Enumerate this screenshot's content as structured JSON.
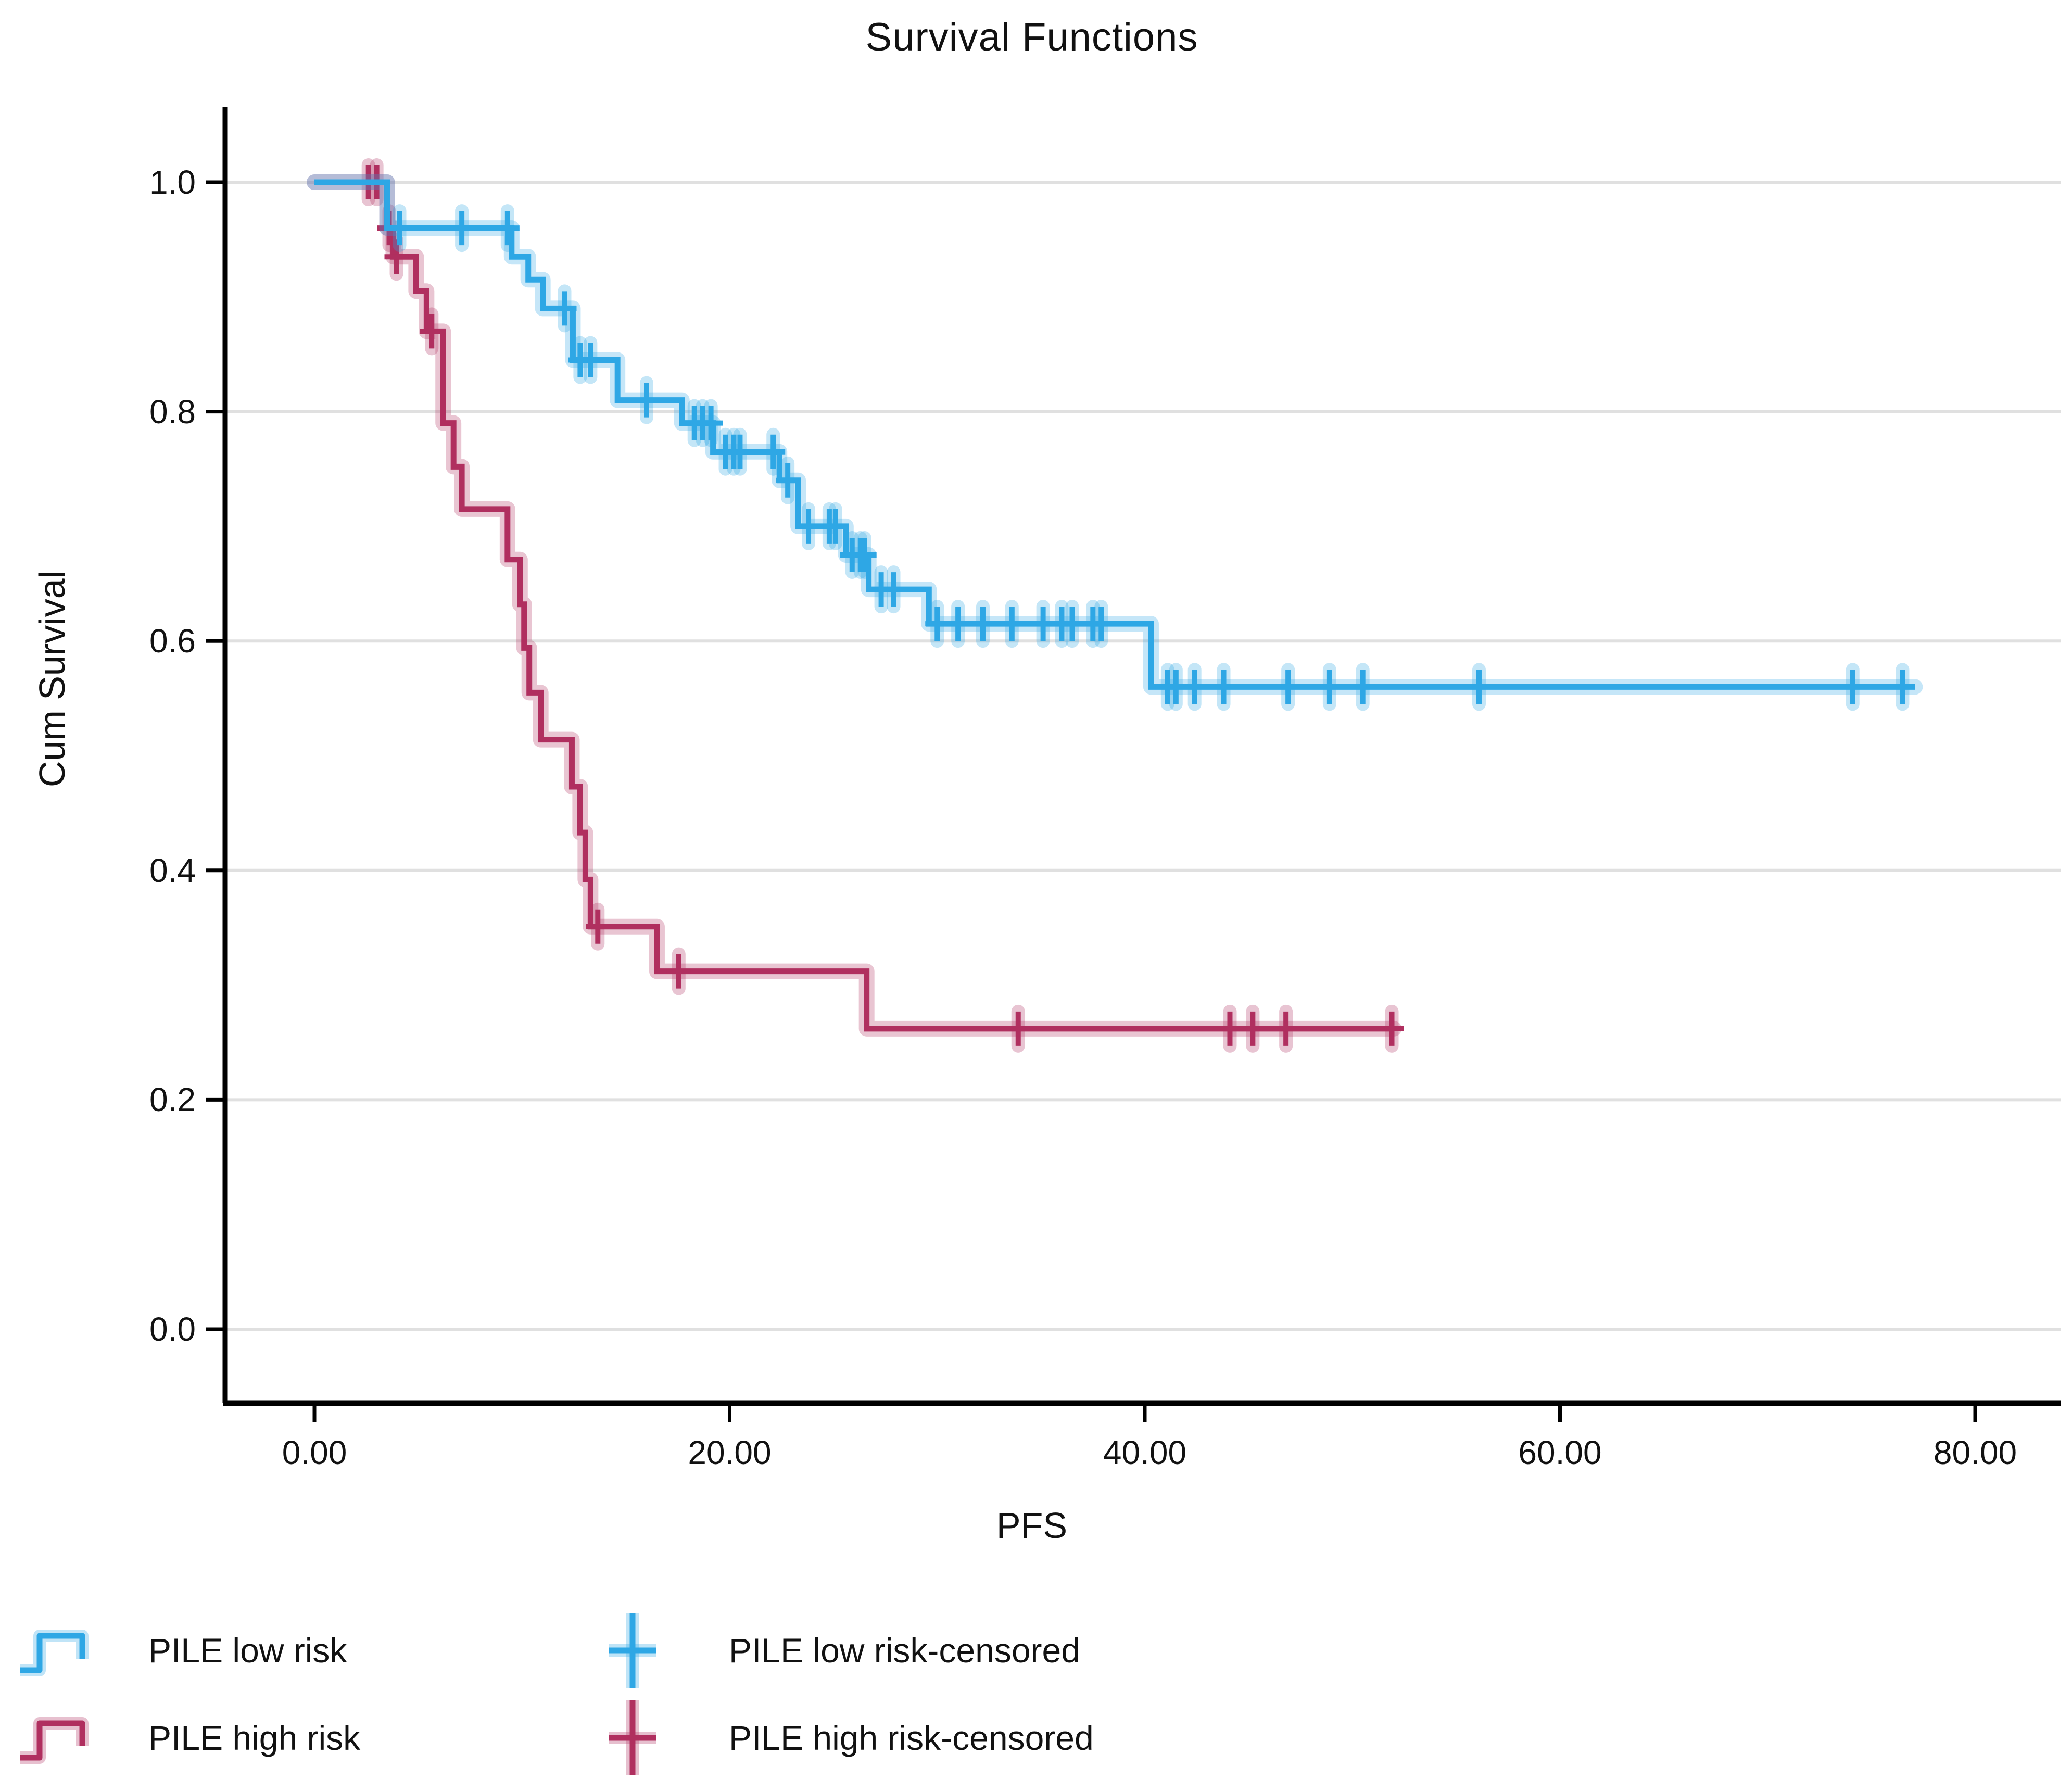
{
  "title": "Survival Functions",
  "axes": {
    "x": {
      "label": "PFS",
      "tick_labels": [
        "0.00",
        "20.00",
        "40.00",
        "60.00",
        "80.00"
      ],
      "tick_values": [
        0,
        20,
        40,
        60,
        80
      ]
    },
    "y": {
      "label": "Cum Survival",
      "tick_labels": [
        "1.0",
        "0.8",
        "0.6",
        "0.4",
        "0.2",
        "0.0"
      ],
      "tick_values": [
        1.0,
        0.8,
        0.6,
        0.4,
        0.2,
        0.0
      ]
    }
  },
  "colors": {
    "low_risk": "#2EA7E5",
    "high_risk": "#B02F5F",
    "gridline": "#E0E0E0",
    "axis": "#000000"
  },
  "chart_data": {
    "type": "line",
    "subtype": "kaplan-meier-step",
    "title": "Survival Functions",
    "xlabel": "PFS",
    "ylabel": "Cum Survival",
    "xlim": [
      -4.3,
      84.2
    ],
    "ylim": [
      0,
      1.05
    ],
    "grid": "horizontal",
    "legend_position": "bottom-left",
    "series": [
      {
        "name": "PILE low risk",
        "color": "#2EA7E5",
        "steps": [
          [
            0,
            1.0
          ],
          [
            3.5,
            0.96
          ],
          [
            9.5,
            0.935
          ],
          [
            10.3,
            0.915
          ],
          [
            11.0,
            0.89
          ],
          [
            12.45,
            0.845
          ],
          [
            14.6,
            0.81
          ],
          [
            17.7,
            0.79
          ],
          [
            19.2,
            0.765
          ],
          [
            22.4,
            0.74
          ],
          [
            23.3,
            0.7
          ],
          [
            25.6,
            0.675
          ],
          [
            26.7,
            0.645
          ],
          [
            29.6,
            0.615
          ],
          [
            40.3,
            0.56
          ]
        ],
        "end_t": 77.1,
        "censored": [
          [
            4.1,
            0.96
          ],
          [
            7.1,
            0.96
          ],
          [
            9.3,
            0.96
          ],
          [
            12.05,
            0.89
          ],
          [
            12.8,
            0.845
          ],
          [
            13.3,
            0.845
          ],
          [
            16.0,
            0.81
          ],
          [
            18.3,
            0.79
          ],
          [
            18.7,
            0.79
          ],
          [
            19.1,
            0.79
          ],
          [
            19.8,
            0.765
          ],
          [
            20.2,
            0.765
          ],
          [
            20.5,
            0.765
          ],
          [
            22.1,
            0.765
          ],
          [
            22.8,
            0.74
          ],
          [
            23.8,
            0.7
          ],
          [
            24.8,
            0.7
          ],
          [
            25.1,
            0.7
          ],
          [
            25.9,
            0.675
          ],
          [
            26.3,
            0.675
          ],
          [
            26.5,
            0.675
          ],
          [
            27.3,
            0.645
          ],
          [
            27.9,
            0.645
          ],
          [
            30.0,
            0.615
          ],
          [
            31.0,
            0.615
          ],
          [
            32.2,
            0.615
          ],
          [
            33.6,
            0.615
          ],
          [
            35.1,
            0.615
          ],
          [
            36.0,
            0.615
          ],
          [
            36.5,
            0.615
          ],
          [
            37.5,
            0.615
          ],
          [
            37.9,
            0.615
          ],
          [
            41.1,
            0.56
          ],
          [
            41.5,
            0.56
          ],
          [
            42.4,
            0.56
          ],
          [
            43.8,
            0.56
          ],
          [
            46.9,
            0.56
          ],
          [
            48.9,
            0.56
          ],
          [
            50.5,
            0.56
          ],
          [
            56.1,
            0.56
          ],
          [
            74.1,
            0.56
          ],
          [
            76.5,
            0.56
          ]
        ]
      },
      {
        "name": "PILE high risk",
        "color": "#B02F5F",
        "steps": [
          [
            0,
            1.0
          ],
          [
            3.5,
            0.96
          ],
          [
            3.8,
            0.935
          ],
          [
            4.9,
            0.905
          ],
          [
            5.4,
            0.87
          ],
          [
            6.2,
            0.79
          ],
          [
            6.7,
            0.752
          ],
          [
            7.1,
            0.715
          ],
          [
            9.3,
            0.671
          ],
          [
            9.9,
            0.632
          ],
          [
            10.1,
            0.594
          ],
          [
            10.35,
            0.555
          ],
          [
            10.9,
            0.514
          ],
          [
            12.4,
            0.473
          ],
          [
            12.8,
            0.433
          ],
          [
            13.05,
            0.392
          ],
          [
            13.3,
            0.351
          ],
          [
            16.5,
            0.312
          ],
          [
            26.6,
            0.262
          ]
        ],
        "end_t": 52.0,
        "censored": [
          [
            2.6,
            1.0
          ],
          [
            3.0,
            1.0
          ],
          [
            3.6,
            0.96
          ],
          [
            3.95,
            0.935
          ],
          [
            5.65,
            0.87
          ],
          [
            13.65,
            0.351
          ],
          [
            17.55,
            0.312
          ],
          [
            33.9,
            0.262
          ],
          [
            44.1,
            0.262
          ],
          [
            45.2,
            0.262
          ],
          [
            46.8,
            0.262
          ],
          [
            51.9,
            0.262
          ]
        ]
      }
    ]
  },
  "legend": [
    {
      "label": "PILE low risk",
      "marker": "step",
      "series": 0
    },
    {
      "label": "PILE low risk-censored",
      "marker": "plus",
      "series": 0
    },
    {
      "label": "PILE high risk",
      "marker": "step",
      "series": 1
    },
    {
      "label": "PILE high risk-censored",
      "marker": "plus",
      "series": 1
    }
  ]
}
